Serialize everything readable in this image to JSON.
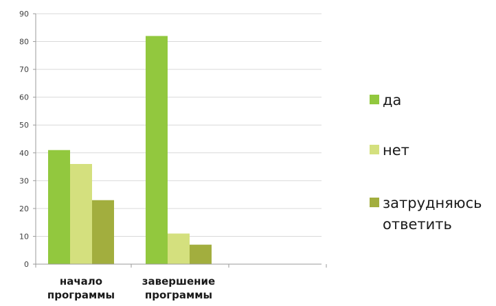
{
  "chart_data": {
    "type": "bar",
    "categories": [
      [
        "начало",
        "программы"
      ],
      [
        "завершение",
        "программы"
      ]
    ],
    "series": [
      {
        "name": "да",
        "values": [
          41,
          82
        ],
        "color": "#92c83e"
      },
      {
        "name": "нет",
        "values": [
          36,
          11
        ],
        "color": "#d4e07e"
      },
      {
        "name": "затрудняюсь ответить",
        "name_lines": [
          "затрудняюсь",
          "ответить"
        ],
        "values": [
          23,
          7
        ],
        "color": "#a2ae3e"
      }
    ],
    "yticks": [
      "0",
      "10",
      "20",
      "30",
      "40",
      "50",
      "60",
      "70",
      "80",
      "90"
    ],
    "ylim": [
      0,
      90
    ],
    "grid": true,
    "legend": "right",
    "title": "",
    "xlabel": "",
    "ylabel": ""
  }
}
